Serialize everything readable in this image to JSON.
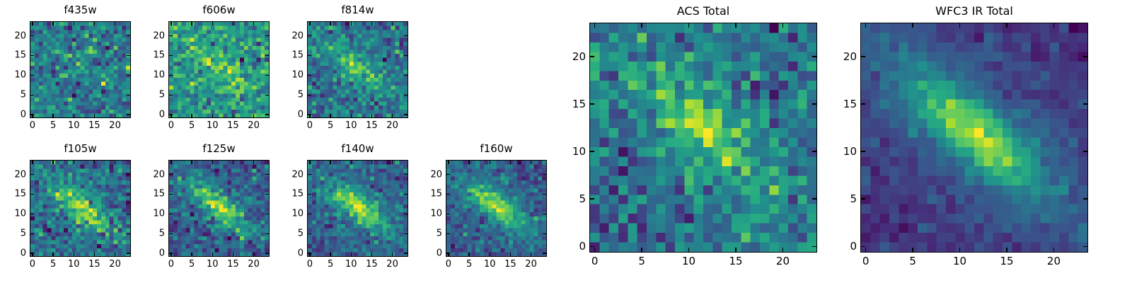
{
  "figure": {
    "background": "#ffffff",
    "text_color": "#000000",
    "axes_color": "#000000"
  },
  "chart_data": {
    "type": "heatmap",
    "colormap": "viridis",
    "description": "Grid of astronomical image cutouts (24x24 pixels) of a diagonal elongated galaxy seen in multiple HST filters plus two stacked totals.",
    "panels": [
      {
        "id": "f435w",
        "title": "f435w",
        "size": "small",
        "grid": [
          24,
          24
        ],
        "xlim": [
          0,
          23
        ],
        "ylim": [
          0,
          23
        ],
        "xticks": [
          0,
          5,
          10,
          15,
          20
        ],
        "yticks": [
          0,
          5,
          10,
          15,
          20
        ],
        "seed": 4350,
        "noise_sigma": 1.0,
        "galaxy": {
          "cx": 11.5,
          "cy": 12.0,
          "angle_deg": -40,
          "sigma_major": 5.5,
          "sigma_minor": 1.8,
          "amplitude": 0.5,
          "halo_amplitude": 0.15,
          "halo_scale": 2.4
        }
      },
      {
        "id": "f606w",
        "title": "f606w",
        "size": "small",
        "grid": [
          24,
          24
        ],
        "xlim": [
          0,
          23
        ],
        "ylim": [
          0,
          23
        ],
        "xticks": [
          0,
          5,
          10,
          15,
          20
        ],
        "yticks": [
          0,
          5,
          10,
          15,
          20
        ],
        "seed": 6060,
        "noise_sigma": 1.0,
        "galaxy": {
          "cx": 11.5,
          "cy": 12.0,
          "angle_deg": -40,
          "sigma_major": 5.5,
          "sigma_minor": 1.8,
          "amplitude": 1.4,
          "halo_amplitude": 0.3,
          "halo_scale": 2.4
        }
      },
      {
        "id": "f814w",
        "title": "f814w",
        "size": "small",
        "grid": [
          24,
          24
        ],
        "xlim": [
          0,
          23
        ],
        "ylim": [
          0,
          23
        ],
        "xticks": [
          0,
          5,
          10,
          15,
          20
        ],
        "yticks": [
          0,
          5,
          10,
          15,
          20
        ],
        "seed": 8140,
        "noise_sigma": 0.85,
        "galaxy": {
          "cx": 11.5,
          "cy": 12.0,
          "angle_deg": -40,
          "sigma_major": 5.5,
          "sigma_minor": 1.8,
          "amplitude": 2.2,
          "halo_amplitude": 0.5,
          "halo_scale": 2.4
        }
      },
      {
        "id": "f105w",
        "title": "f105w",
        "size": "small",
        "grid": [
          24,
          24
        ],
        "xlim": [
          0,
          23
        ],
        "ylim": [
          0,
          23
        ],
        "xticks": [
          0,
          5,
          10,
          15,
          20
        ],
        "yticks": [
          0,
          5,
          10,
          15,
          20
        ],
        "seed": 1050,
        "noise_sigma": 0.8,
        "galaxy": {
          "cx": 11.5,
          "cy": 12.0,
          "angle_deg": -40,
          "sigma_major": 5.6,
          "sigma_minor": 1.9,
          "amplitude": 2.6,
          "halo_amplitude": 0.7,
          "halo_scale": 2.5
        }
      },
      {
        "id": "f125w",
        "title": "f125w",
        "size": "small",
        "grid": [
          24,
          24
        ],
        "xlim": [
          0,
          23
        ],
        "ylim": [
          0,
          23
        ],
        "xticks": [
          0,
          5,
          10,
          15,
          20
        ],
        "yticks": [
          0,
          5,
          10,
          15,
          20
        ],
        "seed": 1250,
        "noise_sigma": 0.8,
        "galaxy": {
          "cx": 11.5,
          "cy": 12.0,
          "angle_deg": -40,
          "sigma_major": 5.6,
          "sigma_minor": 1.9,
          "amplitude": 2.9,
          "halo_amplitude": 0.7,
          "halo_scale": 2.5
        }
      },
      {
        "id": "f140w",
        "title": "f140w",
        "size": "small",
        "grid": [
          24,
          24
        ],
        "xlim": [
          0,
          23
        ],
        "ylim": [
          0,
          23
        ],
        "xticks": [
          0,
          5,
          10,
          15,
          20
        ],
        "yticks": [
          0,
          5,
          10,
          15,
          20
        ],
        "seed": 1400,
        "noise_sigma": 0.75,
        "galaxy": {
          "cx": 11.5,
          "cy": 12.0,
          "angle_deg": -40,
          "sigma_major": 5.6,
          "sigma_minor": 1.9,
          "amplitude": 3.1,
          "halo_amplitude": 0.8,
          "halo_scale": 2.5
        }
      },
      {
        "id": "f160w",
        "title": "f160w",
        "size": "small",
        "grid": [
          24,
          24
        ],
        "xlim": [
          0,
          23
        ],
        "ylim": [
          0,
          23
        ],
        "xticks": [
          0,
          5,
          10,
          15,
          20
        ],
        "yticks": [
          0,
          5,
          10,
          15,
          20
        ],
        "seed": 1600,
        "noise_sigma": 0.7,
        "galaxy": {
          "cx": 11.5,
          "cy": 12.0,
          "angle_deg": -40,
          "sigma_major": 5.6,
          "sigma_minor": 1.9,
          "amplitude": 3.4,
          "halo_amplitude": 0.9,
          "halo_scale": 2.5
        }
      },
      {
        "id": "acs_total",
        "title": "ACS Total",
        "size": "large",
        "grid": [
          24,
          24
        ],
        "xlim": [
          0,
          23
        ],
        "ylim": [
          0,
          23
        ],
        "xticks": [
          0,
          5,
          10,
          15,
          20
        ],
        "yticks": [
          0,
          5,
          10,
          15,
          20
        ],
        "seed": 7777,
        "noise_sigma": 1.0,
        "galaxy": {
          "cx": 11.5,
          "cy": 12.5,
          "angle_deg": -40,
          "sigma_major": 5.6,
          "sigma_minor": 2.0,
          "amplitude": 2.2,
          "halo_amplitude": 1.0,
          "halo_scale": 3.0
        }
      },
      {
        "id": "wfc3_total",
        "title": "WFC3 IR Total",
        "size": "large",
        "grid": [
          24,
          24
        ],
        "xlim": [
          0,
          23
        ],
        "ylim": [
          0,
          23
        ],
        "xticks": [
          0,
          5,
          10,
          15,
          20
        ],
        "yticks": [
          0,
          5,
          10,
          15,
          20
        ],
        "seed": 3333,
        "noise_sigma": 0.45,
        "galaxy": {
          "cx": 11.5,
          "cy": 12.0,
          "angle_deg": -40,
          "sigma_major": 5.8,
          "sigma_minor": 2.0,
          "amplitude": 5.0,
          "halo_amplitude": 1.6,
          "halo_scale": 3.5
        }
      }
    ]
  }
}
